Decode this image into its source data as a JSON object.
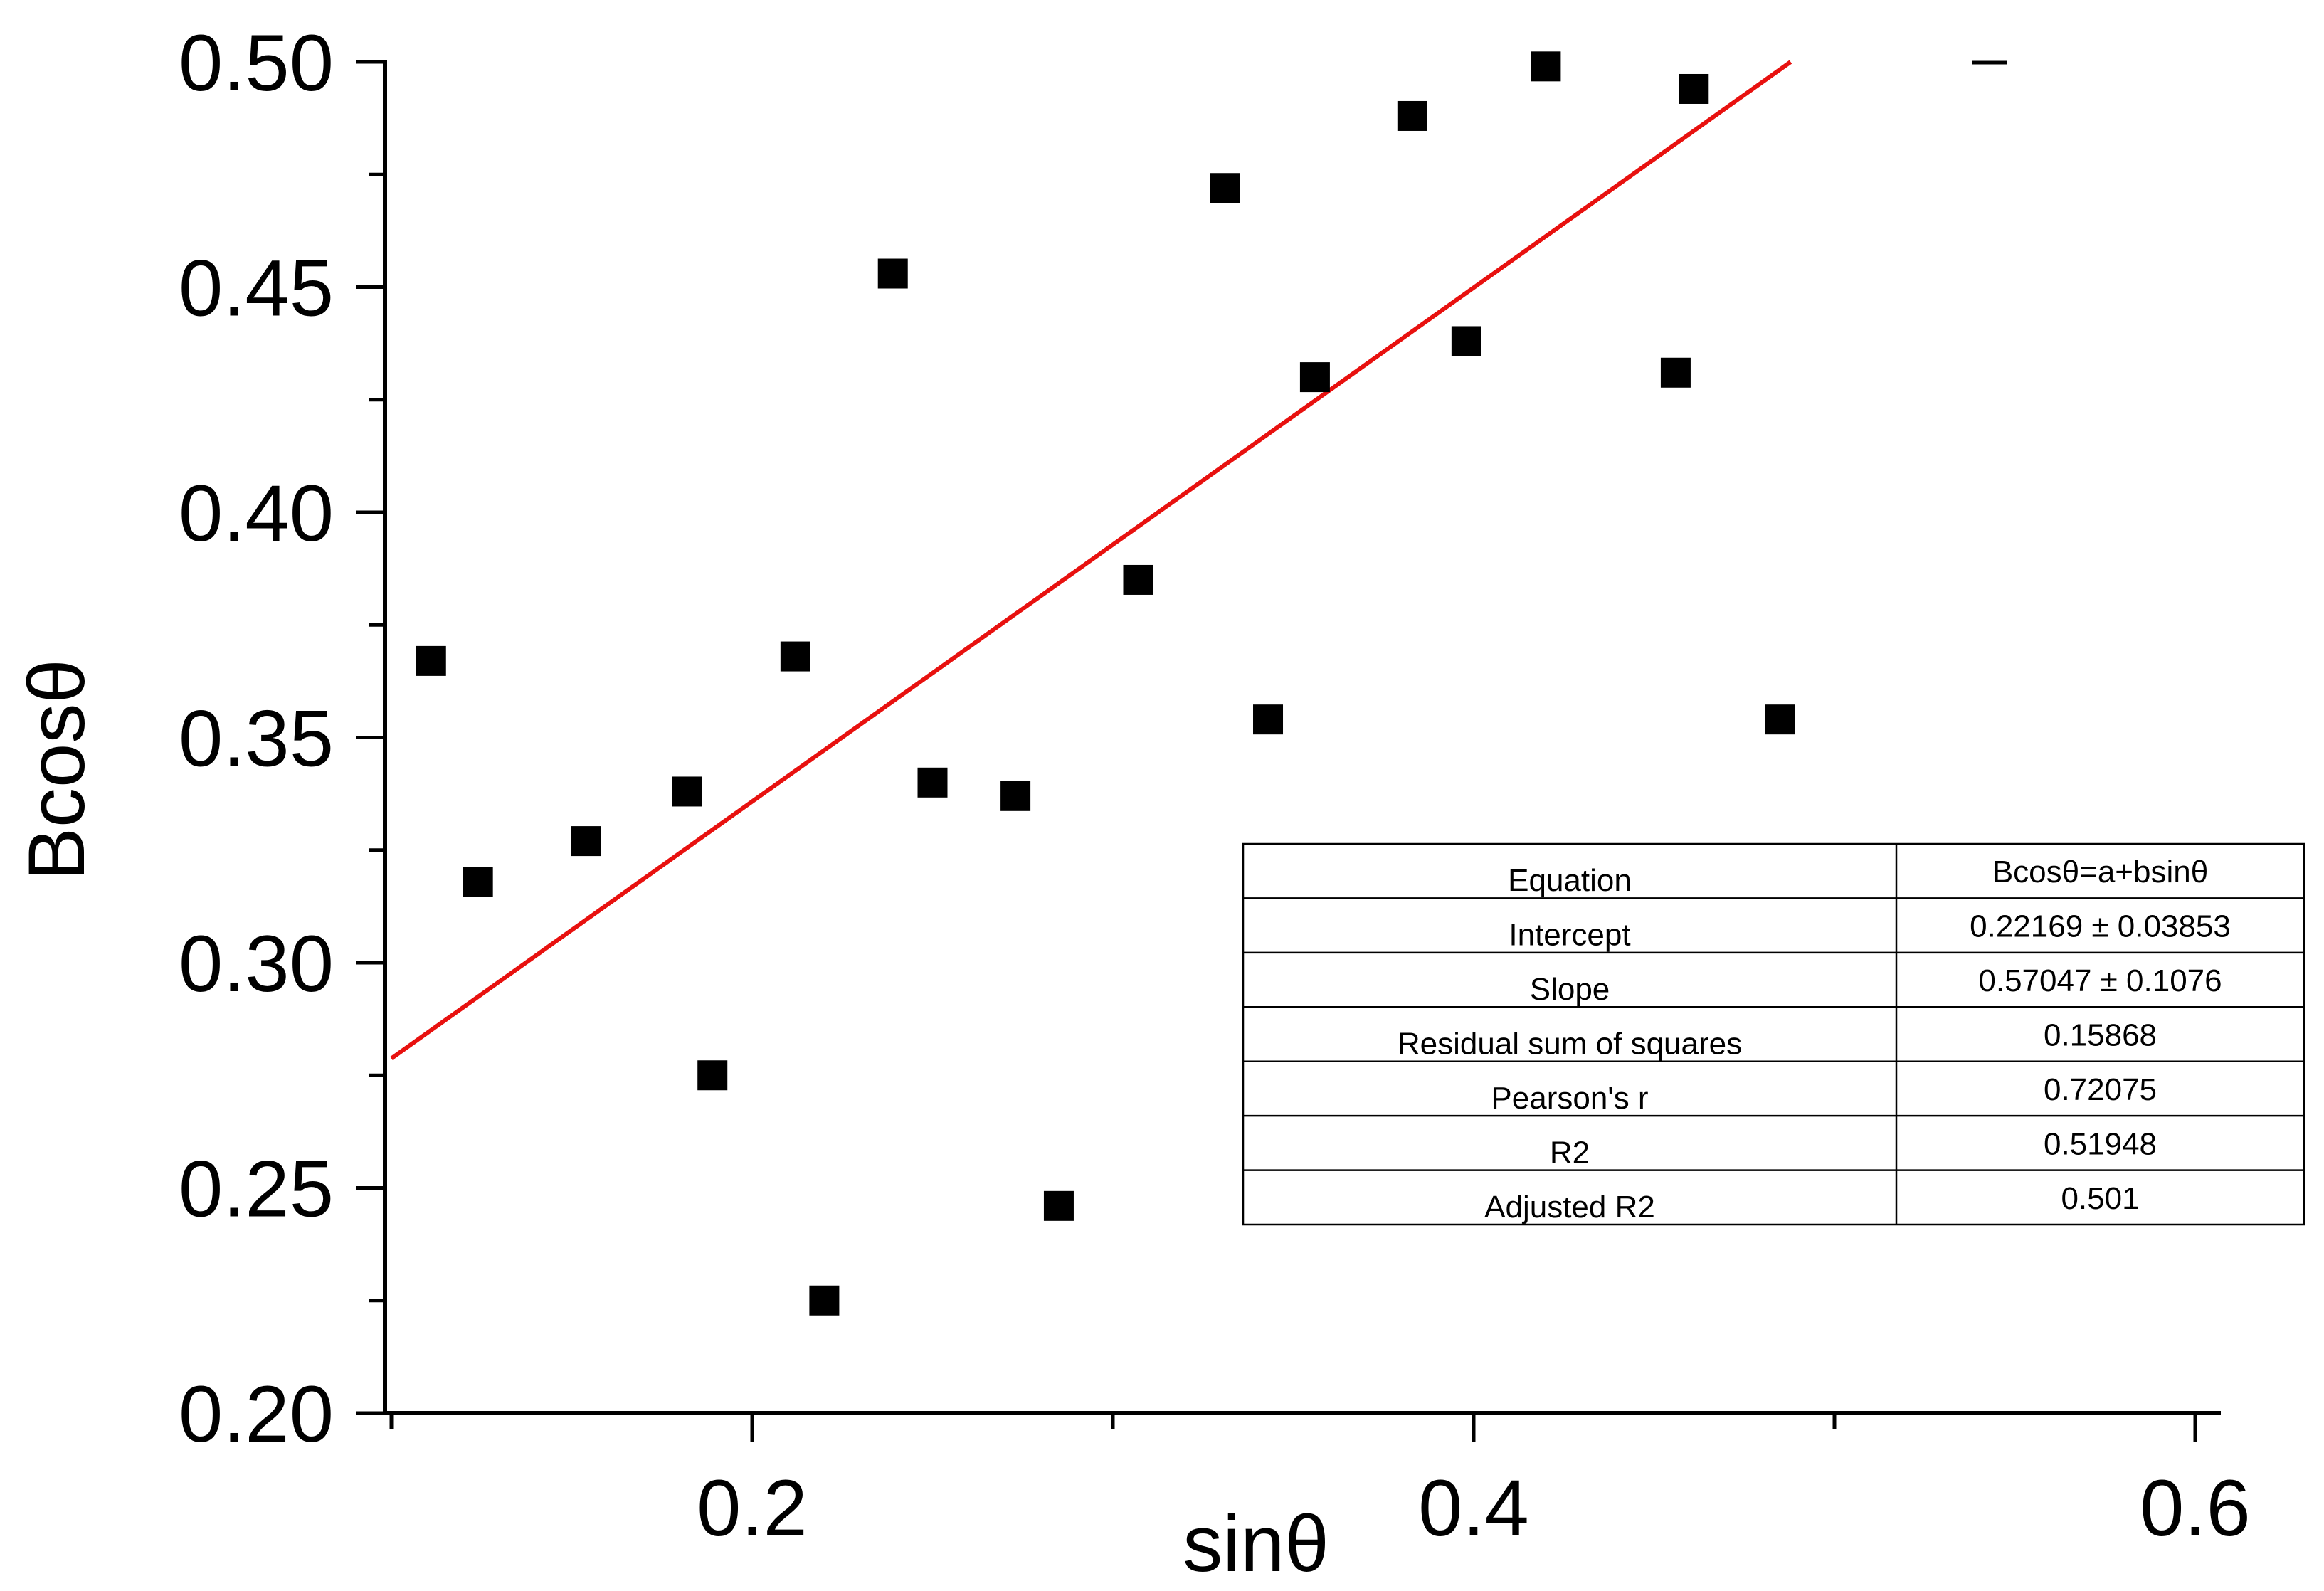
{
  "chart_data": {
    "type": "scatter",
    "title": "",
    "xlabel": "sinθ",
    "ylabel": "Bcosθ",
    "xlim": [
      0.1,
      0.61
    ],
    "ylim": [
      0.2,
      0.5
    ],
    "xticks": [
      {
        "value": 0.2,
        "label": "0.2"
      },
      {
        "value": 0.4,
        "label": "0.4"
      },
      {
        "value": 0.6,
        "label": "0.6"
      }
    ],
    "xminor": [
      0.1,
      0.3,
      0.5
    ],
    "yticks": [
      {
        "value": 0.2,
        "label": "0.20"
      },
      {
        "value": 0.25,
        "label": "0.25"
      },
      {
        "value": 0.3,
        "label": "0.30"
      },
      {
        "value": 0.35,
        "label": "0.35"
      },
      {
        "value": 0.4,
        "label": "0.40"
      },
      {
        "value": 0.45,
        "label": "0.45"
      },
      {
        "value": 0.5,
        "label": "0.50"
      }
    ],
    "yminor": [
      0.225,
      0.275,
      0.325,
      0.375,
      0.425,
      0.475
    ],
    "grid": false,
    "series": [
      {
        "marker": "square",
        "color": "#000000",
        "points": [
          {
            "x": 0.111,
            "y": 0.367
          },
          {
            "x": 0.124,
            "y": 0.318
          },
          {
            "x": 0.154,
            "y": 0.327
          },
          {
            "x": 0.182,
            "y": 0.338
          },
          {
            "x": 0.189,
            "y": 0.275
          },
          {
            "x": 0.212,
            "y": 0.368
          },
          {
            "x": 0.22,
            "y": 0.225
          },
          {
            "x": 0.239,
            "y": 0.453
          },
          {
            "x": 0.25,
            "y": 0.34
          },
          {
            "x": 0.273,
            "y": 0.337
          },
          {
            "x": 0.285,
            "y": 0.246
          },
          {
            "x": 0.307,
            "y": 0.385
          },
          {
            "x": 0.331,
            "y": 0.472
          },
          {
            "x": 0.343,
            "y": 0.354
          },
          {
            "x": 0.356,
            "y": 0.43
          },
          {
            "x": 0.383,
            "y": 0.488
          },
          {
            "x": 0.398,
            "y": 0.438
          },
          {
            "x": 0.42,
            "y": 0.499
          },
          {
            "x": 0.456,
            "y": 0.431
          },
          {
            "x": 0.461,
            "y": 0.494
          },
          {
            "x": 0.485,
            "y": 0.354
          }
        ]
      }
    ],
    "fit": {
      "color": "#e8110f",
      "intercept": 0.22169,
      "slope": 0.57047,
      "x_range": [
        0.1,
        0.49
      ]
    },
    "stats_table": {
      "rows": [
        {
          "label": "Equation",
          "value": "Bcosθ=a+bsinθ"
        },
        {
          "label": "Intercept",
          "value": "0.22169 ± 0.03853"
        },
        {
          "label": "Slope",
          "value": "0.57047 ± 0.1076"
        },
        {
          "label": "Residual sum of squares",
          "value": "0.15868"
        },
        {
          "label": "Pearson's r",
          "value": "0.72075"
        },
        {
          "label": "R2",
          "value": "0.51948"
        },
        {
          "label": "Adjusted R2",
          "value": "0.501"
        }
      ]
    }
  }
}
